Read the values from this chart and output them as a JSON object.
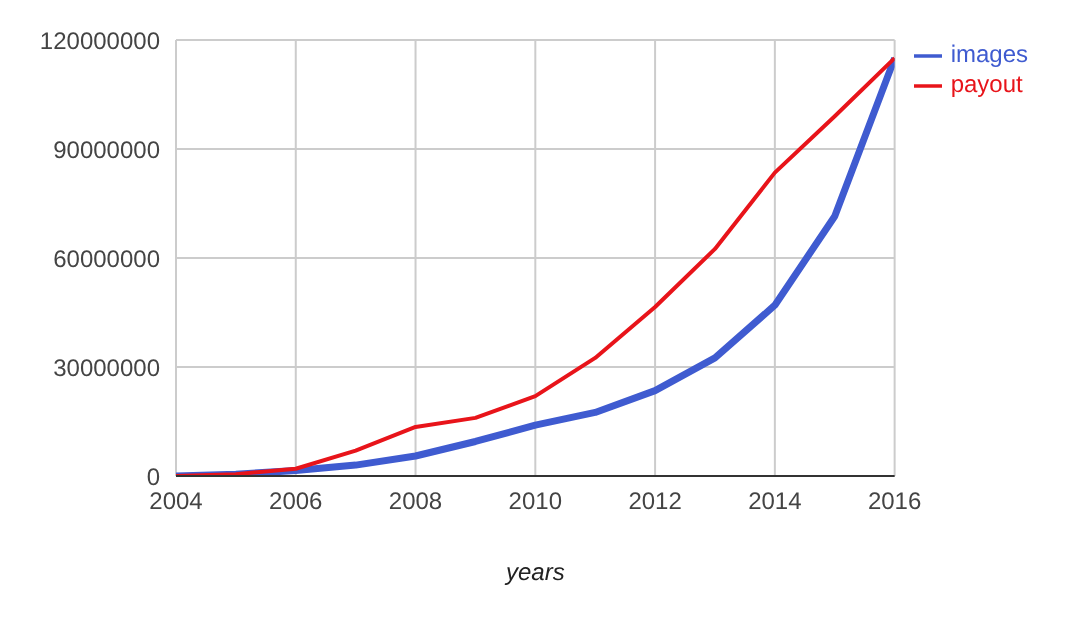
{
  "chart_data": {
    "type": "line",
    "xlabel": "years",
    "x": [
      2004,
      2005,
      2006,
      2007,
      2008,
      2009,
      2010,
      2011,
      2012,
      2013,
      2014,
      2015,
      2016
    ],
    "series": [
      {
        "name": "images",
        "color": "#3f5bd0",
        "values": [
          0,
          500000,
          1500000,
          3000000,
          5500000,
          9500000,
          14000000,
          17500000,
          23500000,
          32500000,
          47000000,
          71500000,
          115000000
        ]
      },
      {
        "name": "payout",
        "color": "#e8141a",
        "values": [
          0,
          500000,
          2000000,
          7000000,
          13500000,
          16000000,
          22000000,
          32500000,
          46500000,
          62500000,
          83500000,
          99000000,
          115000000
        ]
      }
    ],
    "xlim": [
      2004,
      2016
    ],
    "xticks": [
      2004,
      2006,
      2008,
      2010,
      2012,
      2014,
      2016
    ],
    "ylim": [
      0,
      120000000
    ],
    "yticks": [
      0,
      30000000,
      60000000,
      90000000,
      120000000
    ],
    "grid": true,
    "legend": "top right",
    "marker": "none",
    "line_style": "solid"
  }
}
